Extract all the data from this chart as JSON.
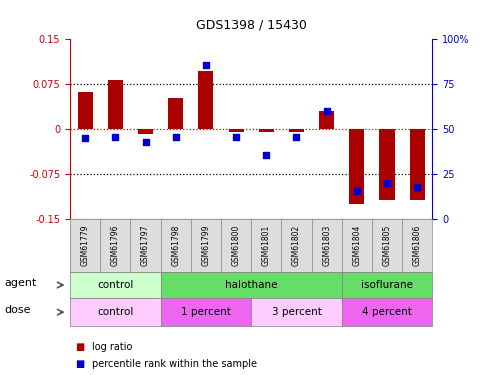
{
  "title": "GDS1398 / 15430",
  "samples": [
    "GSM61779",
    "GSM61796",
    "GSM61797",
    "GSM61798",
    "GSM61799",
    "GSM61800",
    "GSM61801",
    "GSM61802",
    "GSM61803",
    "GSM61804",
    "GSM61805",
    "GSM61806"
  ],
  "log_ratio": [
    0.062,
    0.082,
    -0.008,
    0.052,
    0.098,
    -0.005,
    -0.005,
    -0.005,
    0.03,
    -0.125,
    -0.118,
    -0.118
  ],
  "percentile_rank": [
    45,
    46,
    43,
    46,
    86,
    46,
    36,
    46,
    60,
    16,
    20,
    18
  ],
  "ylim": [
    -0.15,
    0.15
  ],
  "yticks": [
    -0.15,
    -0.075,
    0,
    0.075,
    0.15
  ],
  "ytick_labels": [
    "-0.15",
    "-0.075",
    "0",
    "0.075",
    "0.15"
  ],
  "right_yticks": [
    0,
    25,
    50,
    75,
    100
  ],
  "right_ytick_labels": [
    "0",
    "25",
    "50",
    "75",
    "100%"
  ],
  "hline_dotted": [
    0.075,
    -0.075
  ],
  "bar_color": "#aa0000",
  "dot_color": "#0000cc",
  "bar_width": 0.5,
  "dot_size": 22,
  "agent_groups": [
    {
      "label": "control",
      "start": 0,
      "end": 3,
      "color": "#ccffcc"
    },
    {
      "label": "halothane",
      "start": 3,
      "end": 9,
      "color": "#66dd66"
    },
    {
      "label": "isoflurane",
      "start": 9,
      "end": 12,
      "color": "#66dd66"
    }
  ],
  "dose_groups": [
    {
      "label": "control",
      "start": 0,
      "end": 3,
      "color": "#ffccff"
    },
    {
      "label": "1 percent",
      "start": 3,
      "end": 6,
      "color": "#ee66ee"
    },
    {
      "label": "3 percent",
      "start": 6,
      "end": 9,
      "color": "#ffccff"
    },
    {
      "label": "4 percent",
      "start": 9,
      "end": 12,
      "color": "#ee66ee"
    }
  ],
  "legend_bar_label": "log ratio",
  "legend_dot_label": "percentile rank within the sample",
  "bar_legend_color": "#aa0000",
  "dot_legend_color": "#0000cc",
  "left_axis_color": "#cc0000",
  "right_axis_color": "#0000cc",
  "zero_line_color": "#cc0000",
  "bg_color": "#ffffff",
  "sample_bg_color": "#dddddd"
}
